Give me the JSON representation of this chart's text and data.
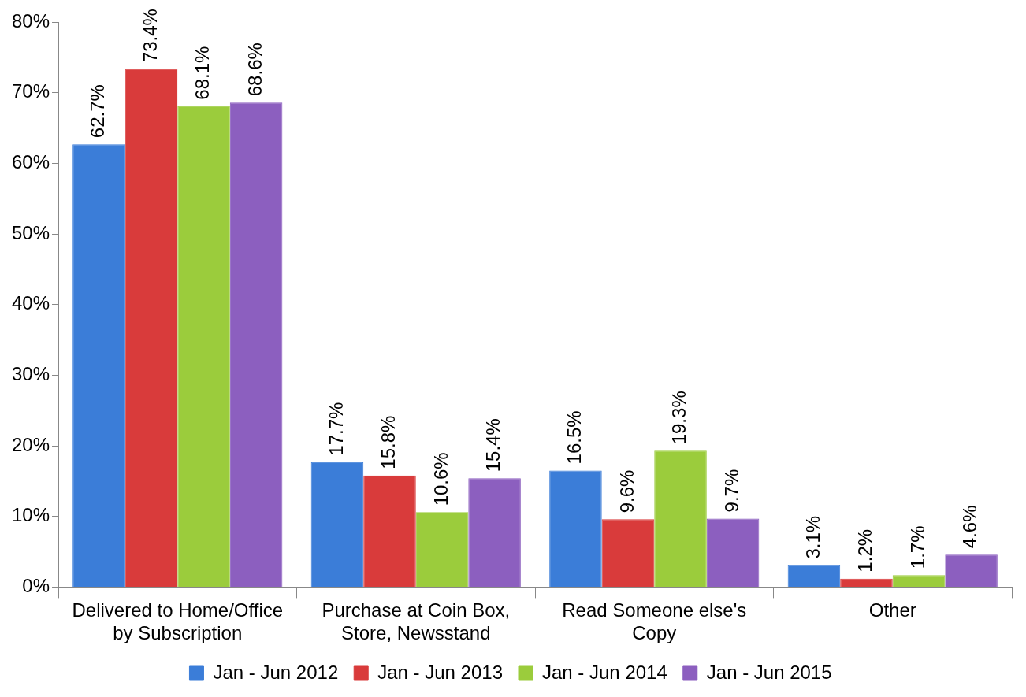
{
  "chart_data": {
    "type": "bar",
    "categories": [
      "Delivered to Home/Office by Subscription",
      "Purchase at Coin Box, Store, Newsstand",
      "Read Someone else's Copy",
      "Other"
    ],
    "series": [
      {
        "name": "Jan - Jun 2012",
        "color": "#3b7dd8",
        "values": [
          62.7,
          17.7,
          16.5,
          3.1
        ],
        "value_labels": [
          "62.7%",
          "17.7%",
          "16.5%",
          "3.1%"
        ]
      },
      {
        "name": "Jan - Jun 2013",
        "color": "#d93b3b",
        "values": [
          73.4,
          15.8,
          9.6,
          1.2
        ],
        "value_labels": [
          "73.4%",
          "15.8%",
          "9.6%",
          "1.2%"
        ]
      },
      {
        "name": "Jan - Jun 2014",
        "color": "#9bcc3c",
        "values": [
          68.1,
          10.6,
          19.3,
          1.7
        ],
        "value_labels": [
          "68.1%",
          "10.6%",
          "19.3%",
          "1.7%"
        ]
      },
      {
        "name": "Jan - Jun 2015",
        "color": "#8c5fbf",
        "values": [
          68.6,
          15.4,
          9.7,
          4.6
        ],
        "value_labels": [
          "68.6%",
          "15.4%",
          "9.7%",
          "4.6%"
        ]
      }
    ],
    "ylim": [
      0,
      80
    ],
    "yticks": [
      {
        "value": 0,
        "label": "0%"
      },
      {
        "value": 10,
        "label": "10%"
      },
      {
        "value": 20,
        "label": "20%"
      },
      {
        "value": 30,
        "label": "30%"
      },
      {
        "value": 40,
        "label": "40%"
      },
      {
        "value": 50,
        "label": "50%"
      },
      {
        "value": 60,
        "label": "60%"
      },
      {
        "value": 70,
        "label": "70%"
      },
      {
        "value": 80,
        "label": "80%"
      }
    ],
    "grid": false,
    "legend": "bottom"
  }
}
